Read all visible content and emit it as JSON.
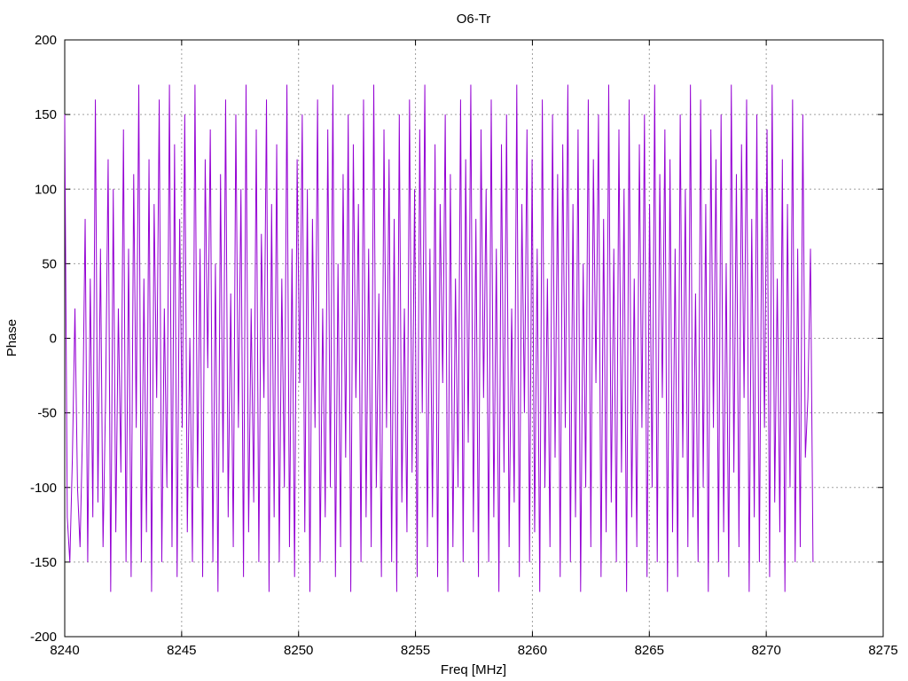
{
  "chart_data": {
    "type": "line",
    "title": "O6-Tr",
    "xlabel": "Freq [MHz]",
    "ylabel": "Phase",
    "xlim": [
      8240,
      8275
    ],
    "ylim": [
      -200,
      200
    ],
    "xticks": [
      8240,
      8245,
      8250,
      8255,
      8260,
      8265,
      8270,
      8275
    ],
    "yticks": [
      -200,
      -150,
      -100,
      -50,
      0,
      50,
      100,
      150,
      200
    ],
    "grid": true,
    "series": [
      {
        "color": "#9400d3",
        "x_start": 8240,
        "x_end": 8272,
        "description_note": "",
        "y": [
          150,
          -120,
          -150,
          -80,
          20,
          -100,
          -140,
          -60,
          80,
          -150,
          40,
          -120,
          160,
          -110,
          60,
          -140,
          -40,
          120,
          -170,
          100,
          -130,
          20,
          -90,
          140,
          -150,
          60,
          -160,
          110,
          -60,
          170,
          -150,
          40,
          -130,
          120,
          -170,
          90,
          -40,
          160,
          -150,
          20,
          -100,
          170,
          -140,
          130,
          -160,
          80,
          -60,
          150,
          -130,
          0,
          -150,
          170,
          -100,
          60,
          -160,
          120,
          -20,
          140,
          -150,
          50,
          -170,
          110,
          -90,
          160,
          -120,
          30,
          -140,
          150,
          -60,
          100,
          -160,
          170,
          -130,
          20,
          -110,
          140,
          -150,
          70,
          -40,
          160,
          -170,
          90,
          -120,
          130,
          -150,
          40,
          -100,
          170,
          -140,
          60,
          -160,
          120,
          -30,
          150,
          -130,
          100,
          -170,
          80,
          -60,
          160,
          -150,
          20,
          -120,
          140,
          -100,
          170,
          -160,
          50,
          -140,
          110,
          -80,
          150,
          -170,
          130,
          -40,
          90,
          -150,
          160,
          -120,
          60,
          -140,
          170,
          -100,
          30,
          -160,
          140,
          -60,
          120,
          -150,
          80,
          -170,
          150,
          -110,
          20,
          -130,
          160,
          -90,
          100,
          -160,
          140,
          -50,
          170,
          -140,
          60,
          -120,
          130,
          -160,
          90,
          -30,
          150,
          -170,
          110,
          -140,
          40,
          -100,
          160,
          -150,
          120,
          -70,
          170,
          -130,
          80,
          -160,
          140,
          -40,
          100,
          -150,
          160,
          -120,
          60,
          -170,
          130,
          -90,
          150,
          -140,
          20,
          -110,
          170,
          -160,
          90,
          -50,
          140,
          -150,
          120,
          -130,
          60,
          -170,
          160,
          -100,
          40,
          -140,
          150,
          -80,
          110,
          -160,
          130,
          -60,
          170,
          -150,
          90,
          -120,
          140,
          -170,
          50,
          -100,
          160,
          -140,
          120,
          -30,
          150,
          -160,
          80,
          -130,
          170,
          -110,
          60,
          -150,
          140,
          -90,
          100,
          -170,
          160,
          -120,
          40,
          -140,
          130,
          -60,
          150,
          -160,
          90,
          -100,
          170,
          -150,
          110,
          -40,
          140,
          -170,
          120,
          -130,
          60,
          -160,
          150,
          -80,
          100,
          -140,
          170,
          -120,
          30,
          -150,
          160,
          -100,
          90,
          -170,
          140,
          -60,
          120,
          -150,
          150,
          -130,
          50,
          -160,
          170,
          -90,
          110,
          -140,
          130,
          -40,
          160,
          -170,
          80,
          -120,
          150,
          -150,
          100,
          -60,
          140,
          -160,
          170,
          -110,
          40,
          -130,
          120,
          -170,
          90,
          -100,
          160,
          -150,
          60,
          -140,
          150,
          -80,
          -40,
          60,
          -150
        ]
      }
    ]
  }
}
